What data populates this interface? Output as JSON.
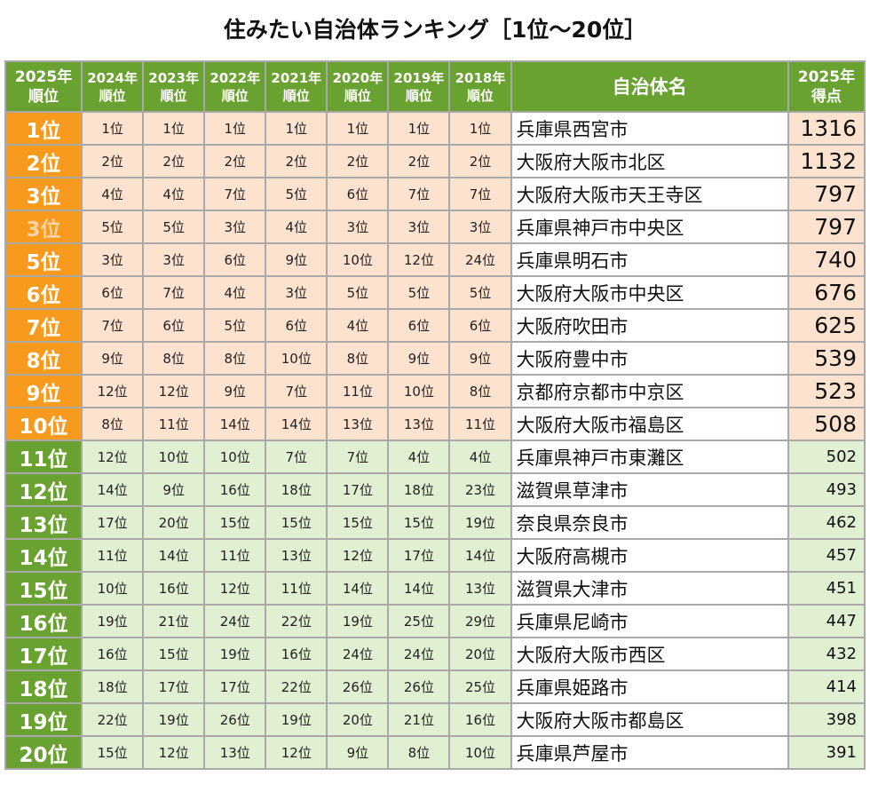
{
  "title": "住みたい自治体ランキング［1位～20位］",
  "headers": {
    "rank_2025": [
      "2025年",
      "順位"
    ],
    "prev_years": [
      [
        "2024年",
        "順位"
      ],
      [
        "2023年",
        "順位"
      ],
      [
        "2022年",
        "順位"
      ],
      [
        "2021年",
        "順位"
      ],
      [
        "2020年",
        "順位"
      ],
      [
        "2019年",
        "順位"
      ],
      [
        "2018年",
        "順位"
      ]
    ],
    "name": "自治体名",
    "score": [
      "2025年",
      "得点"
    ]
  },
  "colors": {
    "top_rank_bg": "#f79a1e",
    "top_cell_bg": "#fce2cf",
    "low_rank_bg": "#6aa231",
    "low_cell_bg": "#e1f0d2",
    "header_bg": "#6aa231"
  },
  "rows": [
    {
      "rank": "1位",
      "prev": [
        "1位",
        "1位",
        "1位",
        "1位",
        "1位",
        "1位",
        "1位"
      ],
      "name": "兵庫県西宮市",
      "score": "1316"
    },
    {
      "rank": "2位",
      "prev": [
        "2位",
        "2位",
        "2位",
        "2位",
        "2位",
        "2位",
        "2位"
      ],
      "name": "大阪府大阪市北区",
      "score": "1132"
    },
    {
      "rank": "3位",
      "prev": [
        "4位",
        "4位",
        "7位",
        "5位",
        "6位",
        "7位",
        "7位"
      ],
      "name": "大阪府大阪市天王寺区",
      "score": "797"
    },
    {
      "rank": "3位",
      "faded": true,
      "prev": [
        "5位",
        "5位",
        "3位",
        "4位",
        "3位",
        "3位",
        "3位"
      ],
      "name": "兵庫県神戸市中央区",
      "score": "797"
    },
    {
      "rank": "5位",
      "prev": [
        "3位",
        "3位",
        "6位",
        "9位",
        "10位",
        "12位",
        "24位"
      ],
      "name": "兵庫県明石市",
      "score": "740"
    },
    {
      "rank": "6位",
      "prev": [
        "6位",
        "7位",
        "4位",
        "3位",
        "5位",
        "5位",
        "5位"
      ],
      "name": "大阪府大阪市中央区",
      "score": "676"
    },
    {
      "rank": "7位",
      "prev": [
        "7位",
        "6位",
        "5位",
        "6位",
        "4位",
        "6位",
        "6位"
      ],
      "name": "大阪府吹田市",
      "score": "625"
    },
    {
      "rank": "8位",
      "prev": [
        "9位",
        "8位",
        "8位",
        "10位",
        "8位",
        "9位",
        "9位"
      ],
      "name": "大阪府豊中市",
      "score": "539"
    },
    {
      "rank": "9位",
      "prev": [
        "12位",
        "12位",
        "9位",
        "7位",
        "11位",
        "10位",
        "8位"
      ],
      "name": "京都府京都市中京区",
      "score": "523"
    },
    {
      "rank": "10位",
      "prev": [
        "8位",
        "11位",
        "14位",
        "14位",
        "13位",
        "13位",
        "11位"
      ],
      "name": "大阪府大阪市福島区",
      "score": "508"
    },
    {
      "rank": "11位",
      "prev": [
        "12位",
        "10位",
        "10位",
        "7位",
        "7位",
        "4位",
        "4位"
      ],
      "name": "兵庫県神戸市東灘区",
      "score": "502"
    },
    {
      "rank": "12位",
      "prev": [
        "14位",
        "9位",
        "16位",
        "18位",
        "17位",
        "18位",
        "23位"
      ],
      "name": "滋賀県草津市",
      "score": "493"
    },
    {
      "rank": "13位",
      "prev": [
        "17位",
        "20位",
        "15位",
        "15位",
        "15位",
        "15位",
        "19位"
      ],
      "name": "奈良県奈良市",
      "score": "462"
    },
    {
      "rank": "14位",
      "prev": [
        "11位",
        "14位",
        "11位",
        "13位",
        "12位",
        "17位",
        "14位"
      ],
      "name": "大阪府高槻市",
      "score": "457"
    },
    {
      "rank": "15位",
      "prev": [
        "10位",
        "16位",
        "12位",
        "11位",
        "14位",
        "14位",
        "13位"
      ],
      "name": "滋賀県大津市",
      "score": "451"
    },
    {
      "rank": "16位",
      "prev": [
        "19位",
        "21位",
        "24位",
        "22位",
        "19位",
        "25位",
        "29位"
      ],
      "name": "兵庫県尼崎市",
      "score": "447"
    },
    {
      "rank": "17位",
      "prev": [
        "16位",
        "15位",
        "19位",
        "16位",
        "24位",
        "24位",
        "20位"
      ],
      "name": "大阪府大阪市西区",
      "score": "432"
    },
    {
      "rank": "18位",
      "prev": [
        "18位",
        "17位",
        "17位",
        "22位",
        "26位",
        "26位",
        "25位"
      ],
      "name": "兵庫県姫路市",
      "score": "414"
    },
    {
      "rank": "19位",
      "prev": [
        "22位",
        "19位",
        "26位",
        "19位",
        "20位",
        "21位",
        "16位"
      ],
      "name": "大阪府大阪市都島区",
      "score": "398"
    },
    {
      "rank": "20位",
      "prev": [
        "15位",
        "12位",
        "13位",
        "12位",
        "9位",
        "8位",
        "10位"
      ],
      "name": "兵庫県芦屋市",
      "score": "391"
    }
  ]
}
